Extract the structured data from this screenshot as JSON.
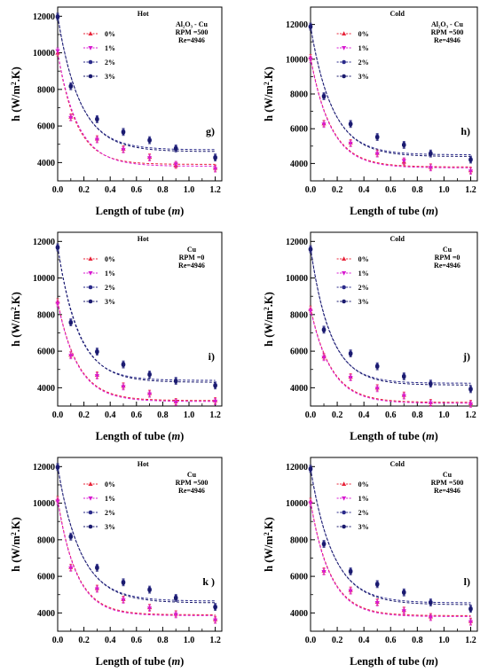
{
  "figure": {
    "xlabel_main": "Length of tube (",
    "xlabel_unit": "m",
    "xlabel_close": ")",
    "ylabel_h": "h (W/m",
    "ylabel_sup": "2",
    "ylabel_tail": ".K)"
  },
  "chart_data": [
    {
      "type": "scatter",
      "panel_label": "g)",
      "title": "Hot",
      "info": [
        "Al₂O₃ - Cu",
        "RPM =500",
        "Re=4946"
      ],
      "xlim": [
        0,
        1.25
      ],
      "ylim": [
        3000,
        12500
      ],
      "xticks": [
        0.0,
        0.2,
        0.4,
        0.6,
        0.8,
        1.0,
        1.2
      ],
      "yticks": [
        4000,
        6000,
        8000,
        10000,
        12000
      ],
      "x": [
        0,
        0.1,
        0.3,
        0.5,
        0.7,
        0.9,
        1.2
      ],
      "series": [
        {
          "name": "0%",
          "values": [
            10000,
            6500,
            5300,
            4750,
            4300,
            3850,
            3700
          ],
          "color": "#e8243a",
          "marker": "triangle-up",
          "fit": [
            3900,
            6100,
            7.0
          ]
        },
        {
          "name": "1%",
          "values": [
            10100,
            6450,
            5250,
            4700,
            4250,
            3900,
            3650
          ],
          "color": "#d81ad0",
          "marker": "triangle-down",
          "fit": [
            3800,
            6200,
            6.5
          ]
        },
        {
          "name": "2%",
          "values": [
            12000,
            8200,
            6400,
            5700,
            5250,
            4800,
            4300
          ],
          "color": "#2a2a8a",
          "marker": "circle",
          "fit": [
            4700,
            7300,
            6.0
          ]
        },
        {
          "name": "3%",
          "values": [
            11950,
            8150,
            6350,
            5650,
            5200,
            4750,
            4250
          ],
          "color": "#1a1a6e",
          "marker": "circle",
          "fit": [
            4600,
            7350,
            5.8
          ]
        }
      ]
    },
    {
      "type": "scatter",
      "panel_label": "h)",
      "title": "Cold",
      "info": [
        "Al₂O₃ - Cu",
        "RPM =500",
        "Re=4946"
      ],
      "xlim": [
        0,
        1.25
      ],
      "ylim": [
        3000,
        13000
      ],
      "xticks": [
        0.0,
        0.2,
        0.4,
        0.6,
        0.8,
        1.0,
        1.2
      ],
      "yticks": [
        4000,
        6000,
        8000,
        10000,
        12000
      ],
      "x": [
        0,
        0.1,
        0.3,
        0.5,
        0.7,
        0.9,
        1.2
      ],
      "series": [
        {
          "name": "0%",
          "values": [
            10100,
            6300,
            5200,
            4600,
            4100,
            3800,
            3600
          ],
          "color": "#e8243a",
          "marker": "triangle-up",
          "fit": [
            3800,
            6300,
            6.5
          ]
        },
        {
          "name": "1%",
          "values": [
            10000,
            6250,
            5150,
            4550,
            4150,
            3750,
            3550
          ],
          "color": "#d81ad0",
          "marker": "triangle-down",
          "fit": [
            3750,
            6300,
            6.5
          ]
        },
        {
          "name": "2%",
          "values": [
            11900,
            7900,
            6300,
            5550,
            5100,
            4600,
            4250
          ],
          "color": "#2a2a8a",
          "marker": "circle",
          "fit": [
            4500,
            7400,
            6.2
          ]
        },
        {
          "name": "3%",
          "values": [
            11850,
            7850,
            6250,
            5500,
            5050,
            4550,
            4200
          ],
          "color": "#1a1a6e",
          "marker": "circle",
          "fit": [
            4400,
            7450,
            6.0
          ]
        }
      ]
    },
    {
      "type": "scatter",
      "panel_label": "i)",
      "title": "Hot",
      "info": [
        "Cu",
        "RPM =0",
        "Re=4946"
      ],
      "xlim": [
        0,
        1.25
      ],
      "ylim": [
        3000,
        12500
      ],
      "xticks": [
        0.0,
        0.2,
        0.4,
        0.6,
        0.8,
        1.0,
        1.2
      ],
      "yticks": [
        4000,
        6000,
        8000,
        10000,
        12000
      ],
      "x": [
        0,
        0.1,
        0.3,
        0.5,
        0.7,
        0.9,
        1.2
      ],
      "series": [
        {
          "name": "0%",
          "values": [
            8700,
            5800,
            4700,
            4100,
            3700,
            3250,
            3300
          ],
          "color": "#e8243a",
          "marker": "triangle-up",
          "fit": [
            3300,
            5400,
            6.5
          ]
        },
        {
          "name": "1%",
          "values": [
            8600,
            5750,
            4650,
            4050,
            3650,
            3200,
            3250
          ],
          "color": "#d81ad0",
          "marker": "triangle-down",
          "fit": [
            3250,
            5400,
            6.5
          ]
        },
        {
          "name": "2%",
          "values": [
            11700,
            7600,
            6000,
            5300,
            4750,
            4400,
            4150
          ],
          "color": "#2a2a8a",
          "marker": "circle",
          "fit": [
            4400,
            7300,
            6.5
          ]
        },
        {
          "name": "3%",
          "values": [
            11650,
            7550,
            5950,
            5250,
            4700,
            4350,
            4100
          ],
          "color": "#1a1a6e",
          "marker": "circle",
          "fit": [
            4300,
            7400,
            6.2
          ]
        }
      ]
    },
    {
      "type": "scatter",
      "panel_label": "j)",
      "title": "Cold",
      "info": [
        "Cu",
        "RPM =0",
        "Re=4946"
      ],
      "xlim": [
        0,
        1.25
      ],
      "ylim": [
        3000,
        12500
      ],
      "xticks": [
        0.0,
        0.2,
        0.4,
        0.6,
        0.8,
        1.0,
        1.2
      ],
      "yticks": [
        4000,
        6000,
        8000,
        10000,
        12000
      ],
      "x": [
        0,
        0.1,
        0.3,
        0.5,
        0.7,
        0.9,
        1.2
      ],
      "series": [
        {
          "name": "0%",
          "values": [
            8300,
            5700,
            4600,
            4000,
            3600,
            3200,
            3150
          ],
          "color": "#e8243a",
          "marker": "triangle-up",
          "fit": [
            3200,
            5150,
            6.5
          ]
        },
        {
          "name": "1%",
          "values": [
            8200,
            5650,
            4550,
            3950,
            3550,
            3150,
            3100
          ],
          "color": "#d81ad0",
          "marker": "triangle-down",
          "fit": [
            3150,
            5150,
            6.5
          ]
        },
        {
          "name": "2%",
          "values": [
            11600,
            7200,
            5900,
            5200,
            4650,
            4250,
            3950
          ],
          "color": "#2a2a8a",
          "marker": "circle",
          "fit": [
            4250,
            7400,
            6.8
          ]
        },
        {
          "name": "3%",
          "values": [
            11550,
            7150,
            5850,
            5150,
            4600,
            4200,
            3900
          ],
          "color": "#1a1a6e",
          "marker": "circle",
          "fit": [
            4150,
            7450,
            6.5
          ]
        }
      ]
    },
    {
      "type": "scatter",
      "panel_label": "k )",
      "title": "Hot",
      "info": [
        "Cu",
        "RPM =500",
        "Re=4946"
      ],
      "xlim": [
        0,
        1.25
      ],
      "ylim": [
        3000,
        12500
      ],
      "xticks": [
        0.0,
        0.2,
        0.4,
        0.6,
        0.8,
        1.0,
        1.2
      ],
      "yticks": [
        4000,
        6000,
        8000,
        10000,
        12000
      ],
      "x": [
        0,
        0.1,
        0.3,
        0.5,
        0.7,
        0.9,
        1.2
      ],
      "series": [
        {
          "name": "0%",
          "values": [
            10200,
            6500,
            5350,
            4750,
            4300,
            3950,
            3650
          ],
          "color": "#e8243a",
          "marker": "triangle-up",
          "fit": [
            3900,
            6300,
            7.0
          ]
        },
        {
          "name": "1%",
          "values": [
            10100,
            6450,
            5300,
            4700,
            4250,
            3900,
            3600
          ],
          "color": "#d81ad0",
          "marker": "triangle-down",
          "fit": [
            3850,
            6300,
            7.0
          ]
        },
        {
          "name": "2%",
          "values": [
            12000,
            8200,
            6500,
            5700,
            5300,
            4850,
            4350
          ],
          "color": "#2a2a8a",
          "marker": "circle",
          "fit": [
            4650,
            7350,
            5.8
          ]
        },
        {
          "name": "3%",
          "values": [
            11950,
            8150,
            6450,
            5650,
            5250,
            4800,
            4300
          ],
          "color": "#1a1a6e",
          "marker": "circle",
          "fit": [
            4550,
            7400,
            5.6
          ]
        }
      ]
    },
    {
      "type": "scatter",
      "panel_label": "l)",
      "title": "Cold",
      "info": [
        "Cu",
        "RPM =500",
        "Re=4946"
      ],
      "xlim": [
        0,
        1.25
      ],
      "ylim": [
        3000,
        12500
      ],
      "xticks": [
        0.0,
        0.2,
        0.4,
        0.6,
        0.8,
        1.0,
        1.2
      ],
      "yticks": [
        4000,
        6000,
        8000,
        10000,
        12000
      ],
      "x": [
        0,
        0.1,
        0.3,
        0.5,
        0.7,
        0.9,
        1.2
      ],
      "series": [
        {
          "name": "0%",
          "values": [
            10100,
            6300,
            5250,
            4600,
            4150,
            3800,
            3550
          ],
          "color": "#e8243a",
          "marker": "triangle-up",
          "fit": [
            3850,
            6250,
            6.8
          ]
        },
        {
          "name": "1%",
          "values": [
            10000,
            6250,
            5200,
            4550,
            4100,
            3750,
            3500
          ],
          "color": "#d81ad0",
          "marker": "triangle-down",
          "fit": [
            3800,
            6250,
            6.8
          ]
        },
        {
          "name": "2%",
          "values": [
            11900,
            7800,
            6300,
            5600,
            5150,
            4600,
            4250
          ],
          "color": "#2a2a8a",
          "marker": "circle",
          "fit": [
            4550,
            7350,
            6.0
          ]
        },
        {
          "name": "3%",
          "values": [
            11850,
            7750,
            6250,
            5550,
            5100,
            4550,
            4200
          ],
          "color": "#1a1a6e",
          "marker": "circle",
          "fit": [
            4450,
            7400,
            5.8
          ]
        }
      ]
    }
  ]
}
